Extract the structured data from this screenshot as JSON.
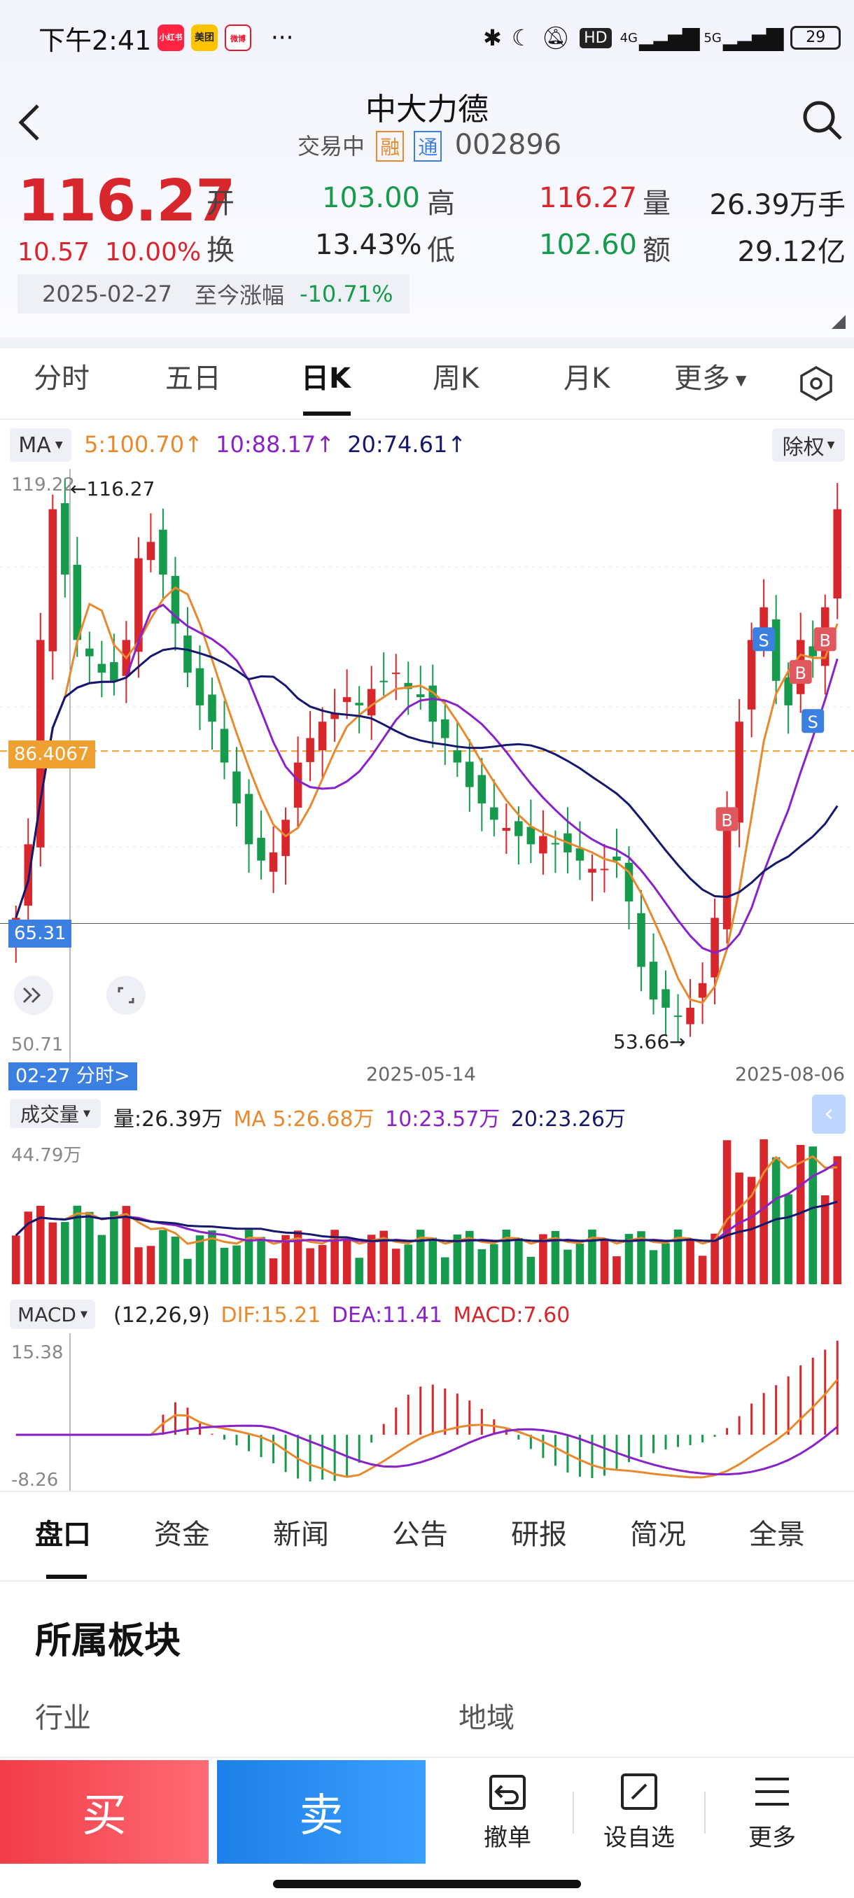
{
  "status_bar": {
    "time": "下午2:41",
    "apps": [
      "小红书",
      "美团",
      "微博"
    ],
    "more": "···",
    "battery": "29",
    "net1": "4G",
    "net2": "5G",
    "hd": "HD"
  },
  "header": {
    "title": "中大力德",
    "status": "交易中",
    "badge1": "融",
    "badge2": "通",
    "code": "002896"
  },
  "quote": {
    "price": "116.27",
    "change": "10.57",
    "change_pct": "10.00%",
    "open_label": "开",
    "open": "103.00",
    "high_label": "高",
    "high": "116.27",
    "vol_label": "量",
    "volume": "26.39万手",
    "turnover_label": "换",
    "turnover": "13.43%",
    "low_label": "低",
    "low": "102.60",
    "amount_label": "额",
    "amount": "29.12亿",
    "date": "2025-02-27",
    "since_label": "至今涨幅",
    "since_value": "-10.71%"
  },
  "chart_tabs": [
    "分时",
    "五日",
    "日K",
    "周K",
    "月K",
    "更多"
  ],
  "active_tab": "日K",
  "ma_bar": {
    "selector": "MA",
    "ma5": "5:100.70",
    "ma10": "10:88.17",
    "ma20": "20:74.61",
    "arrow": "↑",
    "fq": "除权"
  },
  "colors": {
    "up": "#d7262c",
    "down": "#169b4c",
    "ma5": "#e8892d",
    "ma10": "#8a22c9",
    "ma20": "#15196e",
    "accent": "#3b7fe0"
  },
  "kline_labels": {
    "y_top": "119.22",
    "y_bottom": "50.71",
    "hi_tag": "←116.27",
    "lo_tag": "53.66→",
    "level1": "86.4067",
    "level2": "65.31",
    "x_left": "02-27 分时>",
    "x_mid": "2025-05-14",
    "x_right": "2025-08-06",
    "buy": "B",
    "sell": "S"
  },
  "volume_bar": {
    "selector": "成交量",
    "vol": "量:26.39万",
    "ma5": "MA 5:26.68万",
    "ma10": "10:23.57万",
    "ma20": "20:23.26万",
    "max": "44.79万"
  },
  "macd_bar": {
    "selector": "MACD",
    "params": "(12,26,9)",
    "dif": "DIF:15.21",
    "dea": "DEA:11.41",
    "macd": "MACD:7.60",
    "max": "15.38",
    "min": "-8.26"
  },
  "bottom_tabs": [
    "盘口",
    "资金",
    "新闻",
    "公告",
    "研报",
    "简况",
    "全景"
  ],
  "section": {
    "title": "所属板块",
    "industry": "行业",
    "region": "地域"
  },
  "actions": {
    "buy": "买",
    "sell": "卖",
    "cancel": "撤单",
    "watch": "设自选",
    "more": "更多"
  },
  "chart_data": {
    "type": "candlestick",
    "x_range": [
      "2025-02-27",
      "2025-08-06"
    ],
    "ylim": [
      50.71,
      119.22
    ],
    "close_series_approx": [
      66,
      75,
      100,
      116,
      108,
      100,
      98,
      96,
      95,
      100,
      110,
      112,
      108,
      102,
      96,
      92,
      90,
      85,
      80,
      75,
      73,
      74,
      78,
      85,
      88,
      90,
      91,
      93,
      92,
      94,
      95,
      96,
      94,
      93,
      90,
      88,
      85,
      82,
      80,
      78,
      77,
      76,
      75,
      76,
      75,
      74,
      73,
      72,
      72,
      73,
      68,
      60,
      56,
      55,
      54,
      55,
      58,
      66,
      78,
      90,
      100,
      104,
      95,
      92,
      100,
      98,
      104,
      116
    ]
  }
}
